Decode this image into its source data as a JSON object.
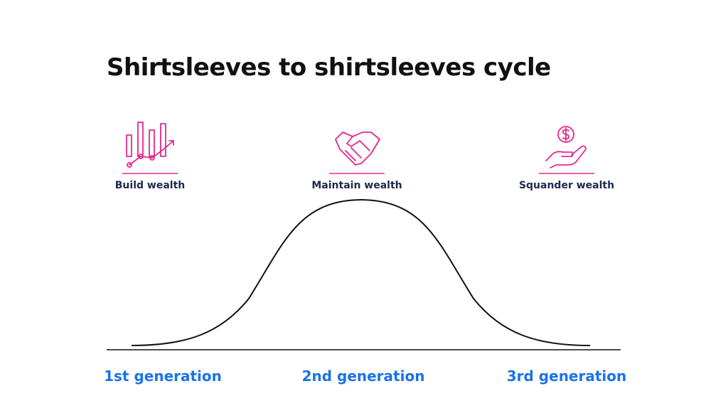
{
  "title": "Shirtsleeves to shirtsleeves cycle",
  "stages": [
    {
      "label": "Build wealth"
    },
    {
      "label": "Maintain wealth"
    },
    {
      "label": "Squander wealth"
    }
  ],
  "generations": [
    "1st generation",
    "2nd generation",
    "3rd generation"
  ]
}
